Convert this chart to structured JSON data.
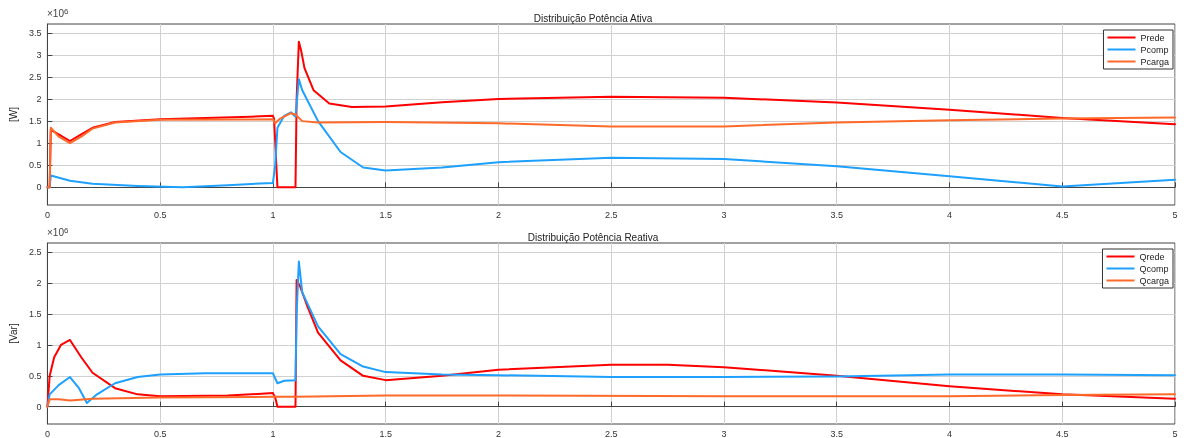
{
  "chart_data": [
    {
      "type": "line",
      "title": "Distribuição Potência Ativa",
      "ylabel": "[W]",
      "annotations": [
        "×10$^{6}$"
      ],
      "xlim": [
        0,
        5
      ],
      "xticks": [
        0,
        0.5,
        1,
        1.5,
        2,
        2.5,
        3,
        3.5,
        4,
        4.5,
        5
      ],
      "ylim": [
        -0.4,
        3.7
      ],
      "yticks": [
        0,
        0.5,
        1,
        1.5,
        2,
        2.5,
        3,
        3.5
      ],
      "grid": true,
      "legend": "top right",
      "marker": "none",
      "line_style": "solid",
      "series": [
        {
          "name": "Prede",
          "color": "#ff0000",
          "x": [
            0,
            0.01,
            0.015,
            0.05,
            0.1,
            0.15,
            0.2,
            0.3,
            0.5,
            0.7,
            0.9,
            1.0,
            1.005,
            1.02,
            1.1,
            1.105,
            1.115,
            1.125,
            1.14,
            1.18,
            1.25,
            1.35,
            1.5,
            1.75,
            2.0,
            2.5,
            3.0,
            3.5,
            4.0,
            4.5,
            5.0
          ],
          "values": [
            0,
            0,
            1.3,
            1.2,
            1.05,
            1.2,
            1.35,
            1.48,
            1.54,
            1.57,
            1.6,
            1.62,
            1.55,
            0,
            0,
            2.0,
            3.3,
            3.1,
            2.7,
            2.2,
            1.9,
            1.82,
            1.83,
            1.93,
            2.0,
            2.05,
            2.03,
            1.92,
            1.76,
            1.57,
            1.43
          ]
        },
        {
          "name": "Pcomp",
          "color": "#1ea0ff",
          "x": [
            0,
            0.01,
            0.015,
            0.1,
            0.2,
            0.4,
            0.6,
            0.8,
            1.0,
            1.01,
            1.02,
            1.05,
            1.08,
            1.1,
            1.115,
            1.13,
            1.2,
            1.3,
            1.4,
            1.5,
            1.75,
            2.0,
            2.5,
            3.0,
            3.5,
            4.0,
            4.5,
            5.0
          ],
          "values": [
            0,
            0,
            0.27,
            0.15,
            0.08,
            0.03,
            0.0,
            0.05,
            0.1,
            0.5,
            1.35,
            1.62,
            1.7,
            1.6,
            2.45,
            2.2,
            1.5,
            0.8,
            0.45,
            0.38,
            0.45,
            0.57,
            0.67,
            0.64,
            0.48,
            0.25,
            0.02,
            0.17
          ]
        },
        {
          "name": "Pcarga",
          "color": "#ff6a2a",
          "x": [
            0,
            0.01,
            0.015,
            0.05,
            0.1,
            0.15,
            0.2,
            0.3,
            0.5,
            1.0,
            1.01,
            1.03,
            1.08,
            1.1,
            1.13,
            1.2,
            1.5,
            2.0,
            2.5,
            3.0,
            3.5,
            4.0,
            4.5,
            5.0
          ],
          "values": [
            0,
            0,
            1.35,
            1.15,
            1.0,
            1.15,
            1.33,
            1.47,
            1.53,
            1.54,
            1.45,
            1.55,
            1.68,
            1.65,
            1.5,
            1.47,
            1.48,
            1.45,
            1.38,
            1.38,
            1.47,
            1.52,
            1.56,
            1.58
          ]
        }
      ]
    },
    {
      "type": "line",
      "title": "Distribuição Potência Reativa",
      "ylabel": "[Var]",
      "annotations": [
        "×10$^{6}$"
      ],
      "xlim": [
        0,
        5
      ],
      "xticks": [
        0,
        0.5,
        1,
        1.5,
        2,
        2.5,
        3,
        3.5,
        4,
        4.5,
        5
      ],
      "ylim": [
        -0.28,
        2.65
      ],
      "yticks": [
        0,
        0.5,
        1,
        1.5,
        2,
        2.5
      ],
      "grid": true,
      "legend": "top right",
      "marker": "none",
      "line_style": "solid",
      "series": [
        {
          "name": "Qrede",
          "color": "#ff0000",
          "x": [
            0,
            0.01,
            0.03,
            0.06,
            0.1,
            0.15,
            0.2,
            0.3,
            0.4,
            0.5,
            0.8,
            1.0,
            1.01,
            1.02,
            1.1,
            1.105,
            1.12,
            1.15,
            1.2,
            1.3,
            1.4,
            1.5,
            1.75,
            2.0,
            2.5,
            2.75,
            3.0,
            3.5,
            4.0,
            4.5,
            5.0
          ],
          "values": [
            0,
            0.5,
            0.8,
            1.0,
            1.08,
            0.8,
            0.55,
            0.3,
            0.2,
            0.17,
            0.18,
            0.22,
            0.15,
            0.0,
            0.0,
            2.05,
            1.95,
            1.65,
            1.2,
            0.75,
            0.5,
            0.43,
            0.5,
            0.6,
            0.68,
            0.68,
            0.64,
            0.5,
            0.33,
            0.2,
            0.13
          ]
        },
        {
          "name": "Qcomp",
          "color": "#1ea0ff",
          "x": [
            0,
            0.01,
            0.05,
            0.1,
            0.14,
            0.175,
            0.22,
            0.3,
            0.4,
            0.5,
            0.7,
            1.0,
            1.02,
            1.05,
            1.1,
            1.105,
            1.115,
            1.13,
            1.2,
            1.3,
            1.4,
            1.5,
            1.75,
            2.0,
            2.5,
            3.0,
            3.5,
            4.0,
            4.5,
            5.0
          ],
          "values": [
            0,
            0.2,
            0.35,
            0.48,
            0.3,
            0.06,
            0.2,
            0.38,
            0.48,
            0.52,
            0.54,
            0.54,
            0.38,
            0.42,
            0.43,
            1.5,
            2.35,
            1.85,
            1.3,
            0.85,
            0.65,
            0.56,
            0.52,
            0.51,
            0.48,
            0.48,
            0.49,
            0.52,
            0.52,
            0.51
          ]
        },
        {
          "name": "Qcarga",
          "color": "#ff6a2a",
          "x": [
            0,
            0.01,
            0.05,
            0.1,
            0.2,
            0.5,
            1.0,
            1.1,
            1.5,
            2.0,
            3.0,
            4.0,
            4.5,
            5.0
          ],
          "values": [
            0,
            0.12,
            0.12,
            0.1,
            0.13,
            0.15,
            0.16,
            0.16,
            0.18,
            0.18,
            0.17,
            0.17,
            0.19,
            0.2
          ]
        }
      ]
    }
  ]
}
